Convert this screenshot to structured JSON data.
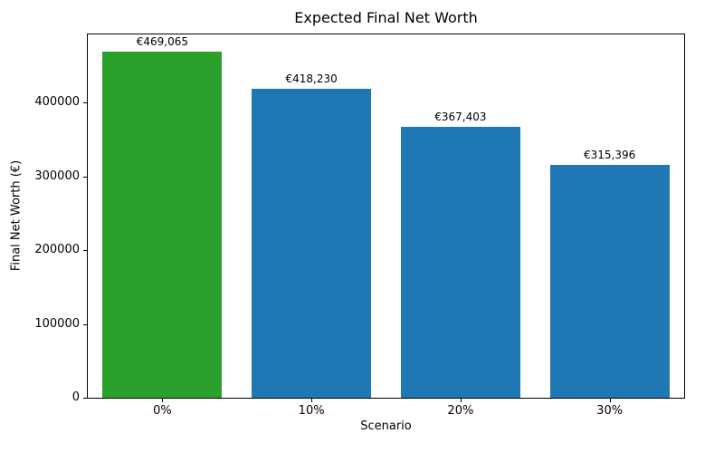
{
  "chart_data": {
    "type": "bar",
    "title": "Expected Final Net Worth",
    "xlabel": "Scenario",
    "ylabel": "Final Net Worth (€)",
    "categories": [
      "0%",
      "10%",
      "20%",
      "30%"
    ],
    "values": [
      469065,
      418230,
      367403,
      315396
    ],
    "value_labels": [
      "€469,065",
      "€418,230",
      "€367,403",
      "€315,396"
    ],
    "bar_colors": [
      "#2ca02c",
      "#1f77b4",
      "#1f77b4",
      "#1f77b4"
    ],
    "ylim": [
      0,
      492518
    ],
    "yticks": [
      0,
      100000,
      200000,
      300000,
      400000
    ],
    "grid": false,
    "legend_position": "none"
  }
}
